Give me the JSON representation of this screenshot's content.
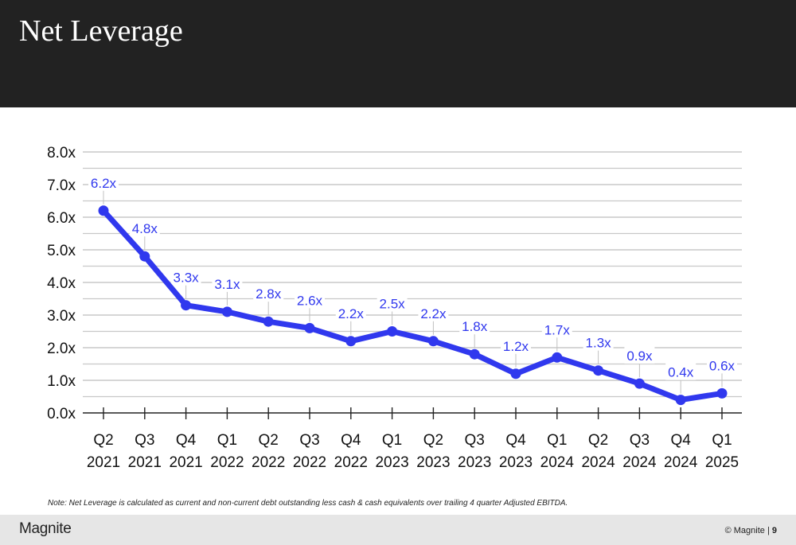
{
  "header": {
    "title": "Net Leverage"
  },
  "chart_data": {
    "type": "line",
    "categories": [
      [
        "Q2",
        "2021"
      ],
      [
        "Q3",
        "2021"
      ],
      [
        "Q4",
        "2021"
      ],
      [
        "Q1",
        "2022"
      ],
      [
        "Q2",
        "2022"
      ],
      [
        "Q3",
        "2022"
      ],
      [
        "Q4",
        "2022"
      ],
      [
        "Q1",
        "2023"
      ],
      [
        "Q2",
        "2023"
      ],
      [
        "Q3",
        "2023"
      ],
      [
        "Q4",
        "2023"
      ],
      [
        "Q1",
        "2024"
      ],
      [
        "Q2",
        "2024"
      ],
      [
        "Q3",
        "2024"
      ],
      [
        "Q4",
        "2024"
      ],
      [
        "Q1",
        "2025"
      ]
    ],
    "values": [
      6.2,
      4.8,
      3.3,
      3.1,
      2.8,
      2.6,
      2.2,
      2.5,
      2.2,
      1.8,
      1.2,
      1.7,
      1.3,
      0.9,
      0.4,
      0.6
    ],
    "data_labels": [
      "6.2x",
      "4.8x",
      "3.3x",
      "3.1x",
      "2.8x",
      "2.6x",
      "2.2x",
      "2.5x",
      "2.2x",
      "1.8x",
      "1.2x",
      "1.7x",
      "1.3x",
      "0.9x",
      "0.4x",
      "0.6x"
    ],
    "ylim": [
      0,
      8
    ],
    "yticks": [
      "0.0x",
      "1.0x",
      "2.0x",
      "3.0x",
      "4.0x",
      "5.0x",
      "6.0x",
      "7.0x",
      "8.0x"
    ],
    "grid": true,
    "line_color": "#3038ee",
    "grid_color": "#c8c8c8"
  },
  "footer": {
    "note": "Note: Net Leverage is calculated as current and non-current debt outstanding less cash & cash equivalents over trailing 4 quarter Adjusted EBITDA.",
    "logo": "Magnite",
    "copyright": "© Magnite | ",
    "page_number": "9"
  }
}
